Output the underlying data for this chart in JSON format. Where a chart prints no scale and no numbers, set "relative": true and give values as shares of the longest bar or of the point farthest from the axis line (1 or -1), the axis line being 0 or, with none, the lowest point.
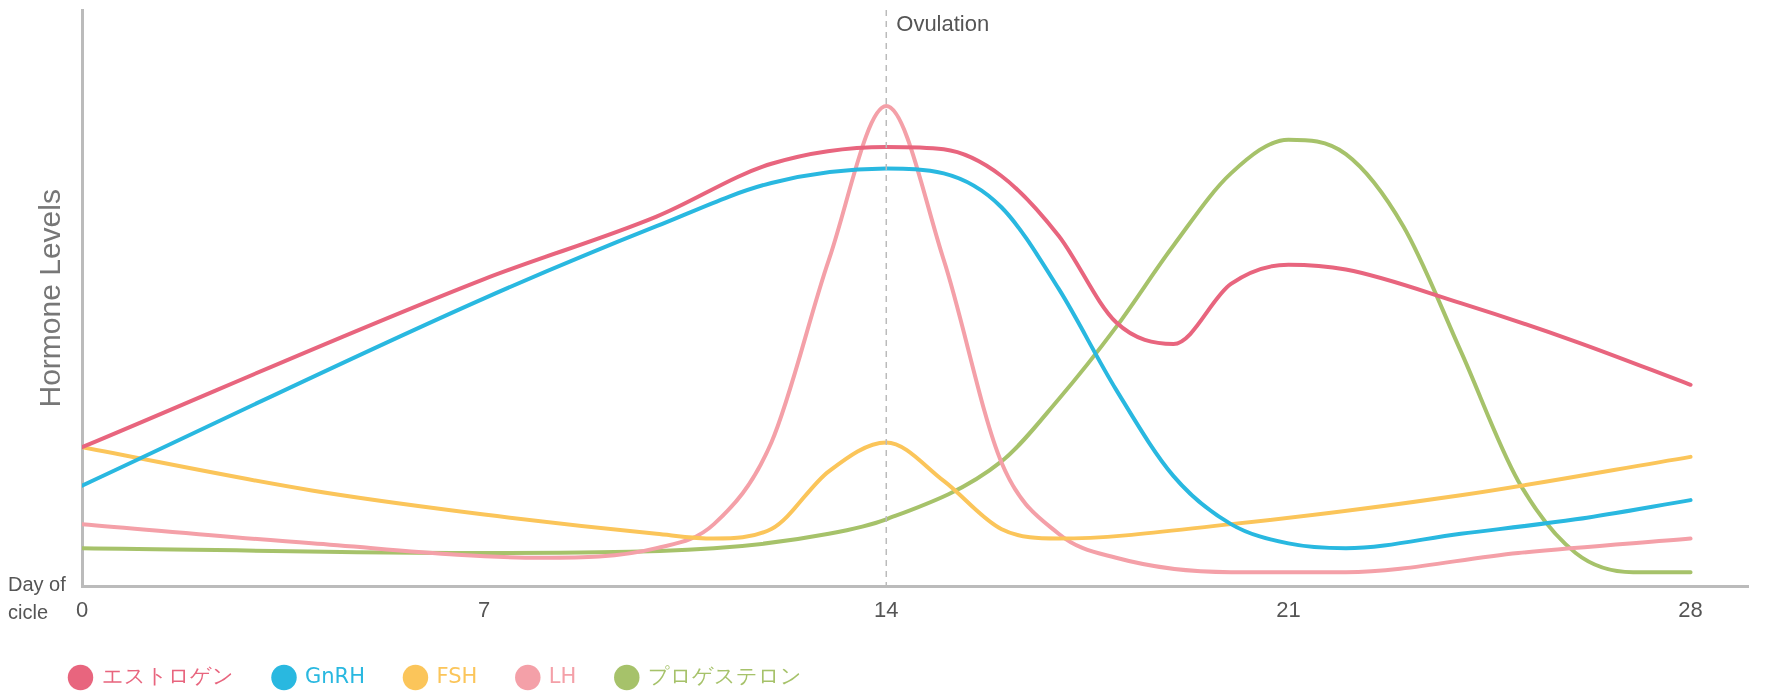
{
  "chart_data": {
    "type": "line",
    "relative": true,
    "ylabel": "Hormone Levels",
    "xlabel": "Day of cicle",
    "xlim": [
      0,
      29
    ],
    "xticks": [
      0,
      7,
      14,
      21,
      28
    ],
    "marker": "none",
    "legend": "bottom left",
    "line_style": "solid",
    "ref_lines": [
      {
        "axis": "x",
        "value": 14,
        "label": "Ovulation",
        "color": "#bbbbbb",
        "line_style": "dashed"
      }
    ],
    "series": [
      {
        "name": "エストロゲン",
        "color": "#e8657e",
        "x": [
          0,
          7,
          10,
          12,
          14,
          15,
          16,
          17,
          18,
          19,
          20,
          21,
          22,
          24,
          26,
          28
        ],
        "values": [
          0.29,
          0.64,
          0.77,
          0.88,
          0.915,
          0.91,
          0.855,
          0.73,
          0.55,
          0.505,
          0.63,
          0.67,
          0.66,
          0.59,
          0.51,
          0.42
        ]
      },
      {
        "name": "GnRH",
        "color": "#29b8e0",
        "x": [
          0,
          7,
          10,
          12,
          14,
          15,
          16,
          17,
          18,
          19,
          20,
          21,
          22,
          24,
          26,
          28
        ],
        "values": [
          0.21,
          0.6,
          0.75,
          0.84,
          0.87,
          0.86,
          0.79,
          0.62,
          0.41,
          0.23,
          0.13,
          0.09,
          0.08,
          0.11,
          0.14,
          0.18
        ]
      },
      {
        "name": "FSH",
        "color": "#fbc55a",
        "x": [
          0,
          4,
          7,
          10,
          11,
          12,
          13,
          14,
          15,
          16,
          17,
          20,
          24,
          28
        ],
        "values": [
          0.29,
          0.2,
          0.15,
          0.11,
          0.1,
          0.12,
          0.24,
          0.3,
          0.22,
          0.12,
          0.1,
          0.13,
          0.19,
          0.27
        ]
      },
      {
        "name": "LH",
        "color": "#f4a0a8",
        "x": [
          0,
          4,
          8,
          10,
          11,
          12,
          13,
          14,
          15,
          16,
          17,
          18,
          20,
          22,
          25,
          28
        ],
        "values": [
          0.13,
          0.09,
          0.06,
          0.08,
          0.13,
          0.3,
          0.68,
          1,
          0.68,
          0.26,
          0.11,
          0.06,
          0.03,
          0.03,
          0.07,
          0.1
        ]
      },
      {
        "name": "プロゲステロン",
        "color": "#a6c26a",
        "x": [
          0,
          7,
          11,
          13,
          14,
          16,
          17,
          18,
          19,
          20,
          21,
          22,
          23,
          24,
          25,
          26,
          27,
          28
        ],
        "values": [
          0.08,
          0.07,
          0.08,
          0.11,
          0.14,
          0.26,
          0.39,
          0.54,
          0.71,
          0.86,
          0.93,
          0.9,
          0.75,
          0.49,
          0.22,
          0.07,
          0.03,
          0.03
        ]
      }
    ]
  }
}
